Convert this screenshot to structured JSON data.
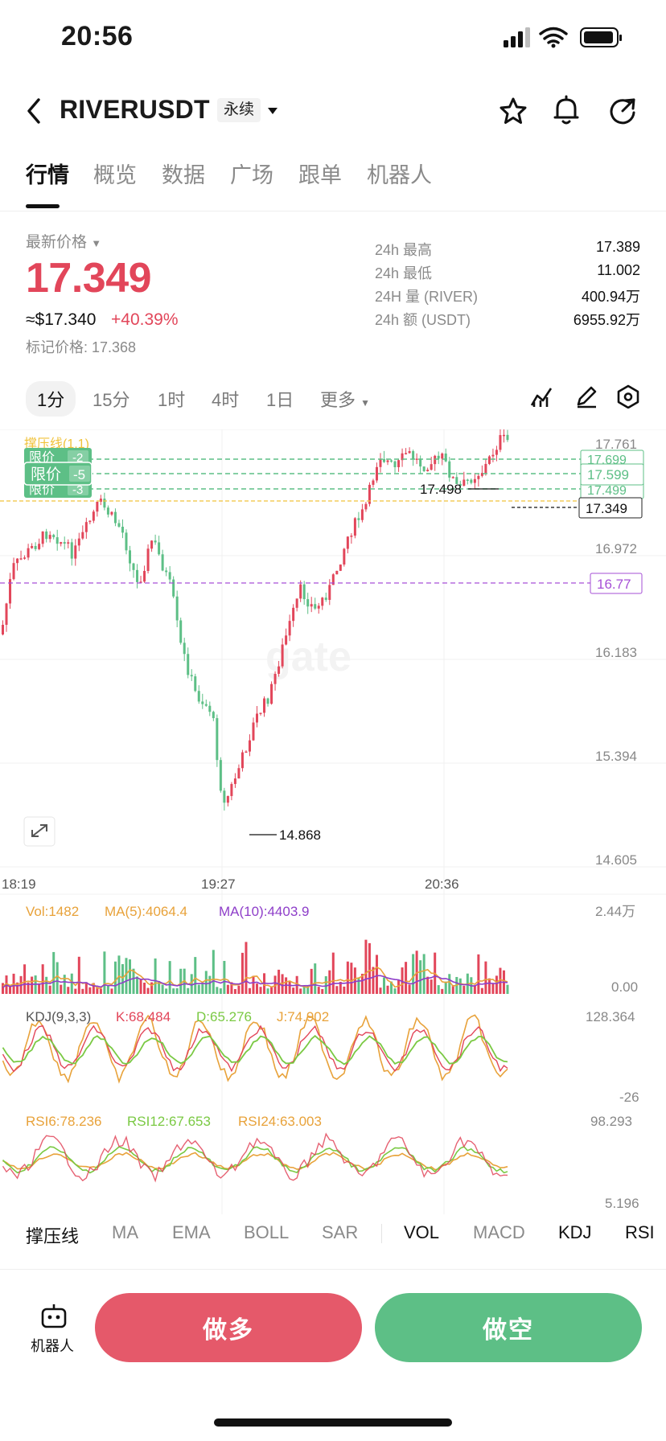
{
  "status_bar": {
    "time": "20:56"
  },
  "header": {
    "symbol": "RIVERUSDT",
    "contract_type": "永续"
  },
  "tabs": [
    "行情",
    "概览",
    "数据",
    "广场",
    "跟单",
    "机器人"
  ],
  "ticker": {
    "last_price_label": "最新价格",
    "last_price": "17.349",
    "usd_price": "≈$17.340",
    "change": "+40.39%",
    "mark_price": "标记价格: 17.368",
    "stats": [
      {
        "label": "24h  最高",
        "value": "17.389"
      },
      {
        "label": "24h  最低",
        "value": "11.002"
      },
      {
        "label": "24H  量 (RIVER)",
        "value": "400.94万"
      },
      {
        "label": "24h  额 (USDT)",
        "value": "6955.92万"
      }
    ]
  },
  "timeframes": [
    "1分",
    "15分",
    "1时",
    "4时",
    "1日",
    "更多"
  ],
  "chart": {
    "support_line_label": "撑压线(1,1)",
    "limit_orders": [
      {
        "label": "限价",
        "qty": "-2",
        "price": "17.699"
      },
      {
        "label": "限价",
        "qty": "-5",
        "price": "17.599"
      },
      {
        "label": "限价",
        "qty": "-3",
        "price": "17.499"
      }
    ],
    "price_axis": [
      "17.761",
      "16.972",
      "16.183",
      "15.394",
      "14.605"
    ],
    "current_price_tag": "17.349",
    "line_tag": "16.77",
    "high_marker": "17.498",
    "low_marker": "14.868",
    "time_axis": [
      "18:19",
      "19:27",
      "20:36"
    ],
    "vol": {
      "label": "Vol:1482",
      "ma5": "MA(5):4064.4",
      "ma10": "MA(10):4403.9",
      "max": "2.44万",
      "min": "0.00"
    },
    "kdj": {
      "label": "KDJ(9,3,3)",
      "k": "K:68.484",
      "d": "D:65.276",
      "j": "J:74.902",
      "max": "128.364",
      "min": "-26"
    },
    "rsi": {
      "r6": "RSI6:78.236",
      "r12": "RSI12:67.653",
      "r24": "RSI24:63.003",
      "max": "98.293",
      "min": "5.196"
    }
  },
  "indicators": [
    "撑压线",
    "MA",
    "EMA",
    "BOLL",
    "SAR",
    "VOL",
    "MACD",
    "KDJ",
    "RSI"
  ],
  "bottom": {
    "robot_label": "机器人",
    "long_button": "做多",
    "short_button": "做空"
  },
  "colors": {
    "up": "#e2465a",
    "down": "#5dbf86",
    "accent_purple": "#a64fd6",
    "ma5": "#e8a23a"
  }
}
